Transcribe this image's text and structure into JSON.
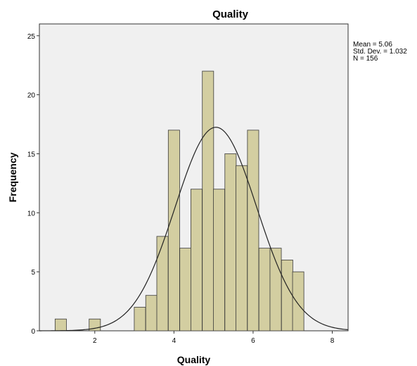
{
  "colors": {
    "plot_background": "#f0f0f0",
    "bar_fill": "#d3cea1",
    "bar_stroke": "#3a3a3a",
    "curve": "#222222",
    "axis": "#333333"
  },
  "chart_data": {
    "type": "bar",
    "title": "Quality",
    "xlabel": "Quality",
    "ylabel": "Frequency",
    "xlim": [
      0.6,
      8.4
    ],
    "ylim": [
      0,
      26
    ],
    "xticks": [
      2,
      4,
      6,
      8
    ],
    "yticks": [
      0,
      5,
      10,
      15,
      20,
      25
    ],
    "grid": false,
    "bin_width": 0.286,
    "bins": [
      {
        "x": 1.14,
        "count": 1
      },
      {
        "x": 2.0,
        "count": 1
      },
      {
        "x": 3.14,
        "count": 2
      },
      {
        "x": 3.43,
        "count": 3
      },
      {
        "x": 3.71,
        "count": 8
      },
      {
        "x": 4.0,
        "count": 17
      },
      {
        "x": 4.29,
        "count": 7
      },
      {
        "x": 4.57,
        "count": 12
      },
      {
        "x": 4.86,
        "count": 22
      },
      {
        "x": 5.14,
        "count": 12
      },
      {
        "x": 5.43,
        "count": 15
      },
      {
        "x": 5.71,
        "count": 14
      },
      {
        "x": 6.0,
        "count": 17
      },
      {
        "x": 6.29,
        "count": 7
      },
      {
        "x": 6.57,
        "count": 7
      },
      {
        "x": 6.86,
        "count": 6
      },
      {
        "x": 7.14,
        "count": 5
      }
    ],
    "normal_curve": {
      "mean": 5.06,
      "std": 1.032,
      "n": 156
    },
    "stats_text": {
      "mean": "Mean = 5.06",
      "std": "Std. Dev. = 1.032",
      "n": "N = 156"
    }
  }
}
